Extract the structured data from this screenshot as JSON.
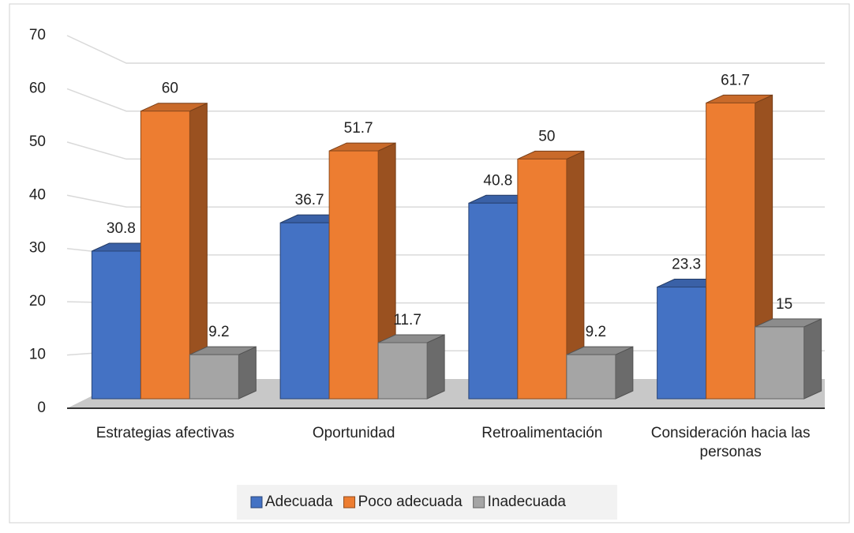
{
  "chart_data": {
    "type": "bar3d",
    "categories": [
      "Estrategias afectivas",
      "Oportunidad",
      "Retroalimentación",
      "Consideración hacia las personas"
    ],
    "series": [
      {
        "name": "Adecuada",
        "color": "#4472c4",
        "values": [
          30.8,
          36.7,
          40.8,
          23.3
        ]
      },
      {
        "name": "Poco adecuada",
        "color": "#ed7d31",
        "values": [
          60,
          51.7,
          50,
          61.7
        ]
      },
      {
        "name": "Inadecuada",
        "color": "#a5a5a5",
        "values": [
          9.2,
          11.7,
          9.2,
          15
        ]
      }
    ],
    "ylim": [
      0,
      70
    ],
    "yticks": [
      0,
      10,
      20,
      30,
      40,
      50,
      60,
      70
    ],
    "grid": true,
    "legend": "bottom"
  }
}
